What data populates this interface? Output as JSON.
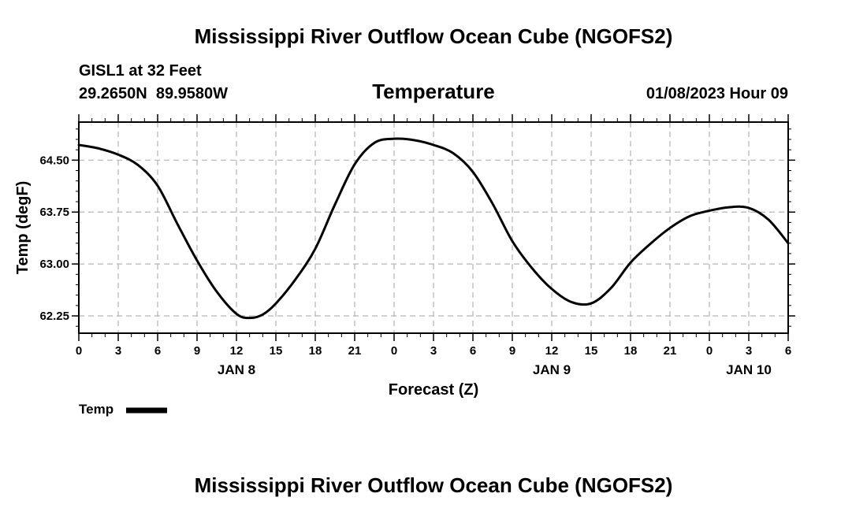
{
  "page": {
    "title": "Mississippi River Outflow Ocean Cube (NGOFS2)",
    "station": "GISL1 at 32 Feet",
    "coordinates": "29.2650N  89.9580W",
    "variable": "Temperature",
    "datetime": "01/08/2023 Hour 09",
    "legend_label": "Temp",
    "footer_title": "Mississippi River Outflow Ocean Cube (NGOFS2)"
  },
  "colors": {
    "line": "#000000",
    "grid": "#b4b4b4",
    "axis": "#000000"
  },
  "chart_data": {
    "type": "line",
    "title": "Temperature",
    "xlabel": "Forecast (Z)",
    "ylabel": "Temp (degF)",
    "xlim": [
      0,
      54
    ],
    "ylim": [
      62.0,
      65.05
    ],
    "yticks": [
      62.25,
      63.0,
      63.75,
      64.5
    ],
    "ytick_labels": [
      "62.25",
      "63.00",
      "63.75",
      "64.50"
    ],
    "xticks": [
      0,
      3,
      6,
      9,
      12,
      15,
      18,
      21,
      24,
      27,
      30,
      33,
      36,
      39,
      42,
      45,
      48,
      51,
      54
    ],
    "xtick_labels": [
      "0",
      "3",
      "6",
      "9",
      "12",
      "15",
      "18",
      "21",
      "0",
      "3",
      "6",
      "9",
      "12",
      "15",
      "18",
      "21",
      "0",
      "3",
      "6"
    ],
    "date_labels": [
      {
        "x": 12,
        "label": "JAN 8"
      },
      {
        "x": 36,
        "label": "JAN 9"
      },
      {
        "x": 51,
        "label": "JAN 10"
      }
    ],
    "grid": true,
    "legend": "bottom-left",
    "series": [
      {
        "name": "Temp",
        "x": [
          0,
          1.5,
          3,
          4.5,
          6,
          7.5,
          9,
          10.5,
          12,
          13,
          14,
          15,
          16.5,
          18,
          19.5,
          21,
          22.5,
          24,
          25.5,
          27,
          28.5,
          30,
          31.5,
          33,
          34.5,
          36,
          37.5,
          39,
          40.5,
          42,
          43.5,
          45,
          46.5,
          48,
          49.5,
          51,
          52.5,
          54
        ],
        "values": [
          64.72,
          64.67,
          64.58,
          64.43,
          64.13,
          63.58,
          63.05,
          62.6,
          62.28,
          62.22,
          62.27,
          62.43,
          62.78,
          63.22,
          63.86,
          64.44,
          64.75,
          64.81,
          64.79,
          64.72,
          64.6,
          64.33,
          63.87,
          63.33,
          62.94,
          62.64,
          62.45,
          62.43,
          62.65,
          63.02,
          63.29,
          63.52,
          63.69,
          63.77,
          63.82,
          63.81,
          63.64,
          63.3
        ]
      }
    ]
  }
}
